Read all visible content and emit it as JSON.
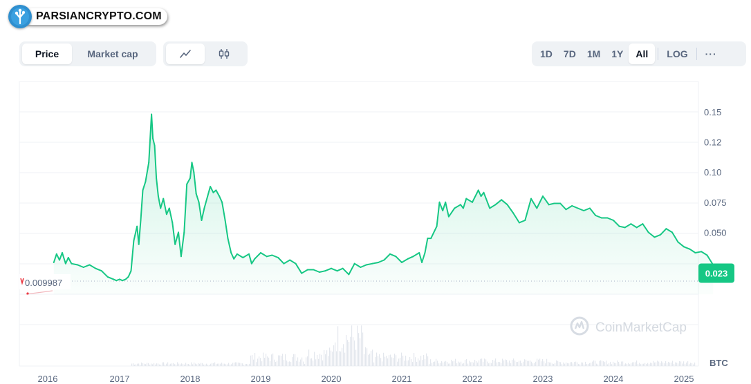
{
  "brand": {
    "site": "PARSIANCRYPTO.COM"
  },
  "left_toggle": {
    "items": [
      {
        "label": "Price",
        "active": true
      },
      {
        "label": "Market cap",
        "active": false
      }
    ]
  },
  "chart_toggle": {
    "items": [
      {
        "icon": "line-chart-icon",
        "active": true
      },
      {
        "icon": "candlestick-icon",
        "active": false
      }
    ]
  },
  "range": {
    "items": [
      "1D",
      "7D",
      "1M",
      "1Y",
      "All"
    ],
    "active": "All",
    "log_label": "LOG",
    "more_label": "···"
  },
  "watermark": "CoinMarketCap",
  "colors": {
    "up": "#16c784",
    "down": "#ea3943",
    "badge": "#16c784"
  },
  "chart_data": {
    "type": "line",
    "title": "",
    "x_ticks": [
      "2016",
      "2017",
      "2018",
      "2019",
      "2020",
      "2021",
      "2022",
      "2023",
      "2024",
      "2025"
    ],
    "y_ticks": [
      "0.15",
      "0.12",
      "0.10",
      "0.075",
      "0.050"
    ],
    "reference_value": 0.009987,
    "reference_label": "0.009987",
    "current_value": 0.023,
    "current_label": "0.023",
    "volume_unit_label": "BTC",
    "series": [
      {
        "points": [
          [
            "2016-02-01",
            0.025
          ],
          [
            "2016-02-15",
            0.032
          ],
          [
            "2016-03-01",
            0.027
          ],
          [
            "2016-03-15",
            0.033
          ],
          [
            "2016-04-01",
            0.024
          ],
          [
            "2016-04-15",
            0.029
          ],
          [
            "2016-05-01",
            0.024
          ],
          [
            "2016-06-01",
            0.023
          ],
          [
            "2016-07-01",
            0.021
          ],
          [
            "2016-08-01",
            0.023
          ],
          [
            "2016-09-01",
            0.02
          ],
          [
            "2016-10-01",
            0.018
          ],
          [
            "2016-11-01",
            0.013
          ],
          [
            "2016-12-01",
            0.011
          ],
          [
            "2016-12-15",
            0.01
          ],
          [
            "2017-01-01",
            0.011
          ],
          [
            "2017-01-15",
            0.01
          ],
          [
            "2017-02-01",
            0.011
          ],
          [
            "2017-02-15",
            0.013
          ],
          [
            "2017-03-01",
            0.018
          ],
          [
            "2017-03-15",
            0.043
          ],
          [
            "2017-04-01",
            0.055
          ],
          [
            "2017-04-10",
            0.04
          ],
          [
            "2017-04-20",
            0.06
          ],
          [
            "2017-05-01",
            0.085
          ],
          [
            "2017-05-15",
            0.092
          ],
          [
            "2017-06-01",
            0.108
          ],
          [
            "2017-06-15",
            0.148
          ],
          [
            "2017-06-22",
            0.128
          ],
          [
            "2017-07-01",
            0.122
          ],
          [
            "2017-07-10",
            0.095
          ],
          [
            "2017-07-20",
            0.08
          ],
          [
            "2017-08-01",
            0.07
          ],
          [
            "2017-08-15",
            0.078
          ],
          [
            "2017-09-01",
            0.065
          ],
          [
            "2017-09-15",
            0.07
          ],
          [
            "2017-10-01",
            0.058
          ],
          [
            "2017-10-15",
            0.04
          ],
          [
            "2017-11-01",
            0.05
          ],
          [
            "2017-11-15",
            0.03
          ],
          [
            "2017-12-01",
            0.05
          ],
          [
            "2017-12-15",
            0.09
          ],
          [
            "2018-01-01",
            0.095
          ],
          [
            "2018-01-10",
            0.108
          ],
          [
            "2018-01-20",
            0.1
          ],
          [
            "2018-02-01",
            0.082
          ],
          [
            "2018-02-15",
            0.075
          ],
          [
            "2018-03-01",
            0.06
          ],
          [
            "2018-03-15",
            0.07
          ],
          [
            "2018-04-01",
            0.08
          ],
          [
            "2018-04-15",
            0.088
          ],
          [
            "2018-05-01",
            0.083
          ],
          [
            "2018-05-15",
            0.085
          ],
          [
            "2018-06-01",
            0.08
          ],
          [
            "2018-06-15",
            0.075
          ],
          [
            "2018-07-01",
            0.06
          ],
          [
            "2018-07-15",
            0.045
          ],
          [
            "2018-08-01",
            0.033
          ],
          [
            "2018-08-15",
            0.028
          ],
          [
            "2018-09-01",
            0.032
          ],
          [
            "2018-10-01",
            0.029
          ],
          [
            "2018-11-01",
            0.032
          ],
          [
            "2018-11-15",
            0.024
          ],
          [
            "2018-12-01",
            0.028
          ],
          [
            "2019-01-01",
            0.033
          ],
          [
            "2019-02-01",
            0.03
          ],
          [
            "2019-03-01",
            0.031
          ],
          [
            "2019-04-01",
            0.029
          ],
          [
            "2019-05-01",
            0.024
          ],
          [
            "2019-06-01",
            0.027
          ],
          [
            "2019-07-01",
            0.024
          ],
          [
            "2019-08-01",
            0.016
          ],
          [
            "2019-09-01",
            0.019
          ],
          [
            "2019-10-01",
            0.019
          ],
          [
            "2019-11-01",
            0.017
          ],
          [
            "2019-12-01",
            0.018
          ],
          [
            "2020-01-01",
            0.02
          ],
          [
            "2020-02-01",
            0.018
          ],
          [
            "2020-03-01",
            0.02
          ],
          [
            "2020-04-01",
            0.015
          ],
          [
            "2020-05-01",
            0.024
          ],
          [
            "2020-06-01",
            0.021
          ],
          [
            "2020-07-01",
            0.023
          ],
          [
            "2020-08-01",
            0.024
          ],
          [
            "2020-09-01",
            0.025
          ],
          [
            "2020-10-01",
            0.027
          ],
          [
            "2020-11-01",
            0.032
          ],
          [
            "2020-12-01",
            0.03
          ],
          [
            "2021-01-01",
            0.025
          ],
          [
            "2021-02-01",
            0.028
          ],
          [
            "2021-03-01",
            0.03
          ],
          [
            "2021-04-01",
            0.033
          ],
          [
            "2021-04-15",
            0.025
          ],
          [
            "2021-05-01",
            0.033
          ],
          [
            "2021-05-15",
            0.045
          ],
          [
            "2021-06-01",
            0.045
          ],
          [
            "2021-07-01",
            0.055
          ],
          [
            "2021-07-15",
            0.075
          ],
          [
            "2021-08-01",
            0.068
          ],
          [
            "2021-08-15",
            0.075
          ],
          [
            "2021-09-01",
            0.063
          ],
          [
            "2021-10-01",
            0.07
          ],
          [
            "2021-11-01",
            0.073
          ],
          [
            "2021-11-15",
            0.07
          ],
          [
            "2021-12-01",
            0.078
          ],
          [
            "2022-01-01",
            0.075
          ],
          [
            "2022-02-01",
            0.085
          ],
          [
            "2022-02-15",
            0.08
          ],
          [
            "2022-03-01",
            0.083
          ],
          [
            "2022-04-01",
            0.07
          ],
          [
            "2022-05-01",
            0.073
          ],
          [
            "2022-06-01",
            0.077
          ],
          [
            "2022-07-01",
            0.073
          ],
          [
            "2022-08-01",
            0.066
          ],
          [
            "2022-09-01",
            0.058
          ],
          [
            "2022-10-01",
            0.06
          ],
          [
            "2022-11-01",
            0.078
          ],
          [
            "2022-12-01",
            0.07
          ],
          [
            "2023-01-01",
            0.08
          ],
          [
            "2023-02-01",
            0.073
          ],
          [
            "2023-03-01",
            0.074
          ],
          [
            "2023-04-01",
            0.074
          ],
          [
            "2023-05-01",
            0.069
          ],
          [
            "2023-06-01",
            0.072
          ],
          [
            "2023-07-01",
            0.07
          ],
          [
            "2023-08-01",
            0.068
          ],
          [
            "2023-09-01",
            0.07
          ],
          [
            "2023-10-01",
            0.064
          ],
          [
            "2023-11-01",
            0.062
          ],
          [
            "2023-12-01",
            0.062
          ],
          [
            "2024-01-01",
            0.06
          ],
          [
            "2024-02-01",
            0.055
          ],
          [
            "2024-03-01",
            0.054
          ],
          [
            "2024-04-01",
            0.057
          ],
          [
            "2024-05-01",
            0.054
          ],
          [
            "2024-06-01",
            0.057
          ],
          [
            "2024-07-01",
            0.05
          ],
          [
            "2024-08-01",
            0.046
          ],
          [
            "2024-09-01",
            0.048
          ],
          [
            "2024-10-01",
            0.053
          ],
          [
            "2024-11-01",
            0.05
          ],
          [
            "2024-12-01",
            0.042
          ],
          [
            "2025-01-01",
            0.038
          ],
          [
            "2025-02-01",
            0.036
          ],
          [
            "2025-03-01",
            0.033
          ],
          [
            "2025-04-01",
            0.034
          ],
          [
            "2025-05-01",
            0.031
          ],
          [
            "2025-06-01",
            0.023
          ]
        ]
      }
    ],
    "grid": true,
    "legend": "none"
  }
}
